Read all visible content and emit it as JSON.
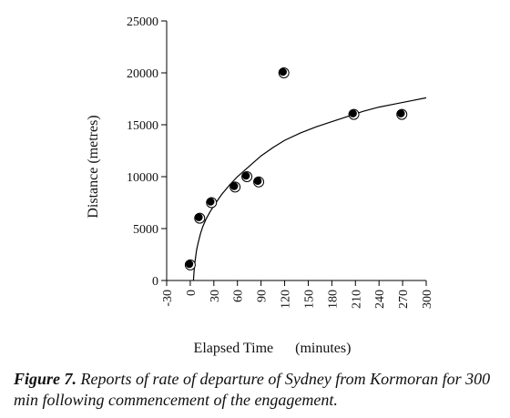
{
  "chart_data": {
    "type": "scatter",
    "xlabel": "Elapsed Time      (minutes)",
    "ylabel": "Distance (metres)",
    "xlim": [
      -30,
      300
    ],
    "ylim": [
      0,
      25000
    ],
    "xticks": [
      "-30",
      "0",
      "30",
      "60",
      "90",
      "120",
      "150",
      "180",
      "210",
      "240",
      "270",
      "300"
    ],
    "yticks": [
      "0",
      "5000",
      "10000",
      "15000",
      "20000",
      "25000"
    ],
    "series": [
      {
        "points": [
          {
            "x": 0,
            "y": 1500
          },
          {
            "x": 12,
            "y": 6000
          },
          {
            "x": 27,
            "y": 7500
          },
          {
            "x": 57,
            "y": 9000
          },
          {
            "x": 72,
            "y": 10000
          },
          {
            "x": 87,
            "y": 9500
          },
          {
            "x": 119,
            "y": 20000
          },
          {
            "x": 208,
            "y": 16000
          },
          {
            "x": 269,
            "y": 16000
          }
        ]
      }
    ],
    "fit_curve": {
      "x": [
        4,
        5,
        6,
        8,
        10,
        13,
        16,
        20,
        25,
        30,
        40,
        50,
        60,
        75,
        90,
        105,
        120,
        140,
        160,
        180,
        200,
        220,
        240,
        260,
        280,
        300
      ],
      "y": [
        0,
        1000,
        1800,
        2900,
        3600,
        4500,
        5200,
        5900,
        6600,
        7200,
        8300,
        9200,
        10000,
        11000,
        12000,
        12800,
        13500,
        14200,
        14800,
        15300,
        15800,
        16300,
        16700,
        17000,
        17300,
        17600
      ]
    },
    "grid": false
  },
  "caption": {
    "label": "Figure 7.",
    "text": " Reports of rate of departure of Sydney from Kormoran for 300 min following commencement of the engagement."
  }
}
